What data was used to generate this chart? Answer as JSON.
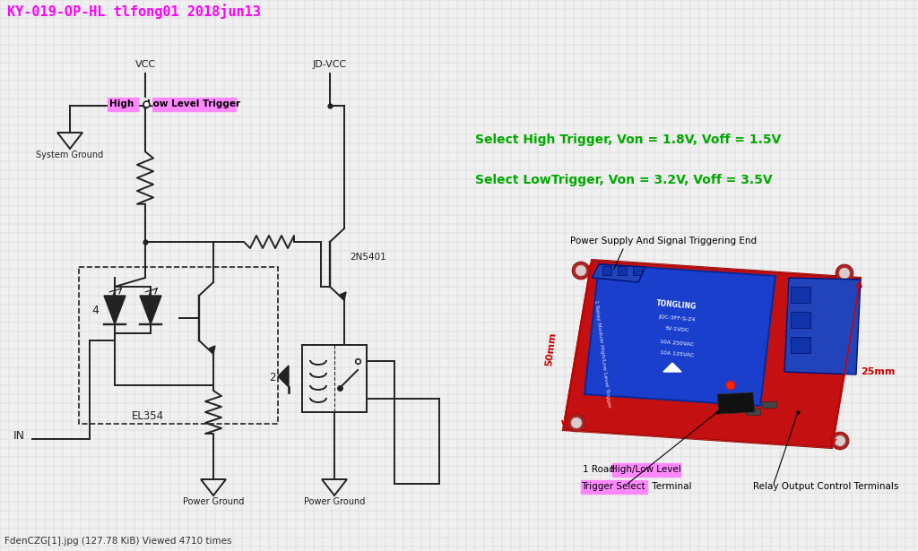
{
  "bg_color": "#f0f0f0",
  "grid_color": "#cccccc",
  "title": "KY-019-OP-HL tlfong01 2018jun13",
  "title_color": "#ff00ff",
  "title_fontsize": 11,
  "high_label": "High",
  "low_trigger_label": "Low Level Trigger",
  "vcc_label": "VCC",
  "jdvcc_label": "JD-VCC",
  "system_ground_label": "System Ground",
  "power_ground_label": "Power Ground",
  "in_label": "IN",
  "el354_label": "EL354",
  "transistor_label": "2N5401",
  "diode_label": "2",
  "select_high": "Select High Trigger, Von = 1.8V, Voff = 1.5V",
  "select_low": "Select LowTrigger, Von = 3.2V, Voff = 3.5V",
  "green_color": "#00aa00",
  "green_fontsize": 10,
  "pwr_supply_label": "Power Supply And Signal Triggering End",
  "dim_50mm": "50mm",
  "dim_25mm": "25mm",
  "road_label": "1 Road ",
  "road_hl_label": "High/Low Level",
  "trigger_sel_label": "Trigger Select",
  "terminal_label": " Terminal",
  "relay_output_label": "Relay Output Control Terminals",
  "magenta_bg": "#ff88ff",
  "footer": "FdenCZG[1].jpg (127.78 KiB) Viewed 4710 times",
  "relay_pcb_color": "#cc1111",
  "relay_blue_color": "#2244cc",
  "relay_dark_blue": "#1133aa"
}
